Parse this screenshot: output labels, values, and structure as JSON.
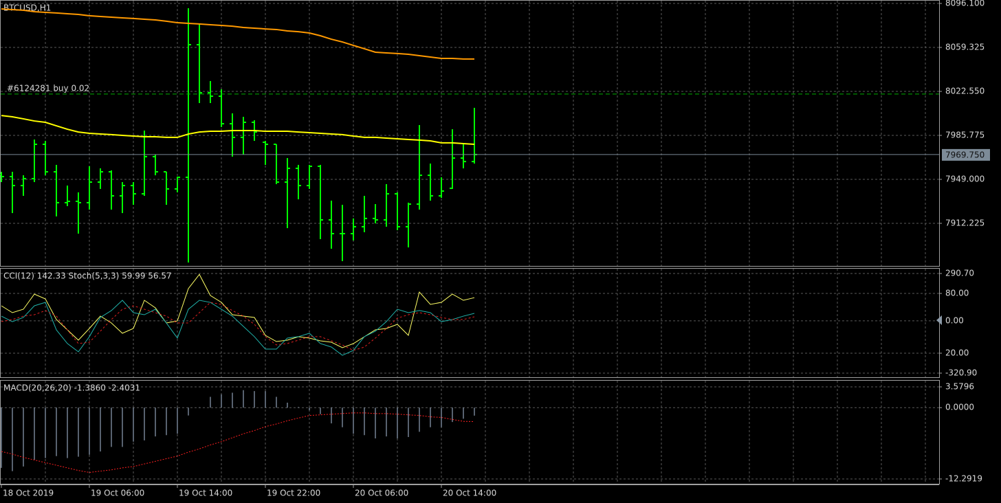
{
  "chart_data": [
    {
      "type": "ohlc",
      "title": "BTCUSD,H1",
      "categories": [
        "18 Oct 2019",
        null,
        null,
        null,
        null,
        null,
        null,
        null,
        "19 Oct 06:00",
        null,
        null,
        null,
        null,
        null,
        null,
        null,
        "19 Oct 14:00",
        null,
        null,
        null,
        null,
        null,
        null,
        null,
        "19 Oct 22:00",
        null,
        null,
        null,
        null,
        null,
        null,
        null,
        "20 Oct 06:00",
        null,
        null,
        null,
        null,
        null,
        null,
        null,
        "20 Oct 14:00",
        null,
        null,
        null
      ],
      "open": [
        7953.0,
        7951.3,
        7943.8,
        7949.6,
        7978.3,
        7955.3,
        7929.5,
        7930.6,
        7929.5,
        7946.7,
        7955.3,
        7935.2,
        7943.8,
        7936.9,
        7968.0,
        7955.3,
        7941.0,
        7950.7,
        8061.6,
        8021.4,
        8018.5,
        7995.5,
        7984.1,
        7996.7,
        7980.0,
        7978.3,
        7946.7,
        7958.2,
        7943.8,
        7959.9,
        7915.1,
        7903.6,
        7903.6,
        7909.4,
        7916.3,
        7915.1,
        7936.9,
        7909.4,
        7928.3,
        7952.4,
        7935.2,
        7941.5,
        7966.8,
        7963.9
      ],
      "high": [
        7955.3,
        7955.3,
        7952.4,
        7982.3,
        7981.2,
        7961.1,
        7943.8,
        7938.1,
        7959.9,
        7958.2,
        7956.5,
        7946.7,
        7946.7,
        7989.8,
        7969.7,
        7955.3,
        7951.3,
        8092.1,
        8078.9,
        8031.2,
        8024.3,
        8004.2,
        8001.3,
        7998.4,
        7981.2,
        7978.3,
        7966.8,
        7961.1,
        7961.1,
        7961.1,
        7931.2,
        7927.7,
        7916.3,
        7935.2,
        7928.3,
        7945.0,
        7938.1,
        7929.5,
        7994.4,
        7962.2,
        7950.7,
        7990.9,
        7978.3,
        8008.8
      ],
      "low": [
        7946.7,
        7920.8,
        7935.2,
        7946.7,
        7952.4,
        7918.0,
        7926.6,
        7903.6,
        7923.7,
        7941.0,
        7923.7,
        7920.8,
        7927.7,
        7935.2,
        7952.4,
        7927.7,
        7938.1,
        7879.5,
        8012.8,
        8012.8,
        7992.7,
        7968.0,
        7969.7,
        7981.2,
        7961.1,
        7945.0,
        7908.2,
        7932.3,
        7941.0,
        7899.0,
        7891.0,
        7880.6,
        7897.9,
        7904.8,
        7912.2,
        7909.4,
        7906.5,
        7892.1,
        7923.7,
        7931.2,
        7933.5,
        7941.0,
        7958.2,
        7962.2
      ],
      "close": [
        7951.3,
        7943.8,
        7949.6,
        7978.3,
        7955.3,
        7929.5,
        7930.6,
        7929.5,
        7946.7,
        7955.3,
        7935.2,
        7943.8,
        7936.9,
        7968.0,
        7955.3,
        7941.0,
        7950.7,
        8061.6,
        8021.4,
        8018.5,
        7995.5,
        7984.1,
        7996.7,
        7988.6,
        7978.3,
        7946.7,
        7958.2,
        7943.8,
        7959.9,
        7915.1,
        7903.6,
        7903.6,
        7909.4,
        7916.3,
        7915.1,
        7936.9,
        7909.4,
        7928.3,
        7952.4,
        7935.2,
        7939.2,
        7966.8,
        7963.9,
        7969.75
      ],
      "color": "#00ff00",
      "lines": [
        {
          "color": "#ff9900",
          "values": [
            8091.5,
            8090.9,
            8090.4,
            8089.2,
            8088.6,
            8088.1,
            8087.5,
            8086.9,
            8085.8,
            8085.2,
            8084.6,
            8084.0,
            8083.5,
            8082.9,
            8082.3,
            8081.2,
            8080.0,
            8079.4,
            8078.9,
            8078.3,
            8077.7,
            8077.1,
            8076.0,
            8075.4,
            8074.8,
            8074.3,
            8073.1,
            8072.5,
            8071.4,
            8069.1,
            8066.2,
            8063.9,
            8061.0,
            8058.2,
            8055.3,
            8054.7,
            8054.2,
            8053.6,
            8052.4,
            8051.3,
            8050.1,
            8050.1,
            8049.6,
            8049.6
          ]
        },
        {
          "color": "#ffff00",
          "values": [
            8002.4,
            8001.3,
            7999.6,
            7997.8,
            7996.7,
            7993.8,
            7990.9,
            7988.6,
            7987.5,
            7986.9,
            7986.4,
            7985.8,
            7985.2,
            7984.6,
            7984.6,
            7984.1,
            7984.1,
            7986.9,
            7988.6,
            7989.2,
            7989.2,
            7989.8,
            7989.8,
            7989.8,
            7989.2,
            7989.2,
            7989.2,
            7988.6,
            7988.1,
            7987.5,
            7986.9,
            7986.4,
            7985.2,
            7984.1,
            7984.1,
            7983.5,
            7982.9,
            7982.3,
            7981.8,
            7981.2,
            7979.5,
            7979.5,
            7978.9,
            7978.3
          ]
        }
      ],
      "order": {
        "label": "#6124281 buy 0.02",
        "price": 8020.3,
        "color": "#00b000"
      },
      "price_line": {
        "value": 7969.75,
        "label": "7969.750"
      },
      "ylim": [
        7876.6,
        8096.1
      ],
      "yticks": [
        {
          "value": 8096.1,
          "label": "8096.100"
        },
        {
          "value": 8059.325,
          "label": "8059.325"
        },
        {
          "value": 8022.55,
          "label": "8022.550"
        },
        {
          "value": 7985.775,
          "label": "7985.775"
        },
        {
          "value": 7949,
          "label": "7949.000"
        },
        {
          "value": 7912.225,
          "label": "7912.225"
        }
      ],
      "grid": true
    },
    {
      "type": "line",
      "title": "CCI(12) 142.33 Stoch(5,3,3) 59.99 56.57",
      "lines": [
        {
          "color": "#ffff66",
          "axis": "y",
          "style": "solid",
          "values": [
            92.5,
            50.3,
            71.4,
            164.2,
            134.6,
            8.1,
            -55.2,
            -118.4,
            -46.7,
            29.2,
            -13.0,
            -76.3,
            -46.7,
            126.2,
            79.8,
            -13.0,
            -0.3,
            197.9,
            285.0,
            155.7,
            113.5,
            37.6,
            29.2,
            20.7,
            -88.9,
            -126.9,
            -118.4,
            -97.4,
            -105.8,
            -122.7,
            -131.1,
            -164.8,
            -139.5,
            -97.4,
            -55.2,
            -46.7,
            -21.4,
            -88.9,
            176.8,
            100.9,
            113.5,
            164.2,
            126.2,
            142.33
          ]
        },
        {
          "color": "#20b2aa",
          "axis": "y2",
          "style": "solid",
          "values": [
            57.2,
            51.7,
            55.9,
            67.6,
            71.0,
            43.4,
            29.7,
            21.4,
            36.6,
            55.9,
            62.8,
            73.1,
            60.7,
            58.6,
            64.1,
            50.3,
            35.2,
            64.1,
            73.1,
            71.0,
            64.1,
            57.2,
            46.9,
            36.6,
            24.1,
            24.1,
            35.2,
            36.6,
            40.0,
            29.7,
            26.2,
            17.9,
            22.8,
            36.6,
            42.1,
            51.7,
            64.1,
            60.7,
            62.8,
            60.7,
            51.7,
            53.8,
            57.2,
            59.99
          ]
        },
        {
          "color": "#e02020",
          "axis": "y2",
          "style": "dashed",
          "values": [
            51.7,
            53.8,
            57.2,
            58.6,
            62.8,
            57.2,
            43.4,
            29.7,
            31.0,
            42.1,
            53.8,
            64.1,
            67.6,
            64.1,
            60.7,
            57.2,
            50.3,
            50.3,
            60.7,
            71.0,
            69.0,
            62.8,
            57.2,
            49.0,
            36.6,
            28.3,
            29.7,
            33.1,
            36.6,
            36.6,
            32.4,
            28.3,
            22.8,
            26.2,
            35.2,
            44.8,
            55.2,
            58.6,
            60.7,
            58.6,
            55.9,
            53.8,
            53.8,
            56.57
          ]
        }
      ],
      "ylim": [
        -320.9,
        290.7
      ],
      "yticks": [
        {
          "value": 290.7,
          "label": "290.70"
        },
        {
          "value": 0,
          "label": "0.00"
        },
        {
          "value": -320.9,
          "label": "-320.90"
        }
      ],
      "y2lim": [
        0,
        100
      ],
      "y2ticks": [
        {
          "value": 80,
          "label": "80.00"
        },
        {
          "value": 20,
          "label": "20.00"
        }
      ],
      "grid": true
    },
    {
      "type": "macd",
      "title": "MACD(20,26,20) -1.3860 -2.4031",
      "values": [
        -10.38,
        -10.94,
        -10.15,
        -9.02,
        -8.69,
        -8.35,
        -8.69,
        -8.46,
        -8.12,
        -7.56,
        -6.77,
        -6.77,
        -5.87,
        -5.64,
        -4.96,
        -4.74,
        -4.51,
        -1.35,
        0.05,
        1.86,
        2.29,
        2.58,
        3.01,
        2.86,
        2.86,
        1.86,
        0.86,
        0.1,
        -0.45,
        -1.13,
        -2.71,
        -3.38,
        -4.51,
        -4.74,
        -5.3,
        -4.96,
        -5.3,
        -5.07,
        -4.17,
        -3.38,
        -3.38,
        -2.48,
        -1.92,
        -1.386
      ],
      "color": "#b0c4de",
      "lines": [
        {
          "color": "#ff2020",
          "axis": "y",
          "style": "dotted",
          "values": [
            -7.56,
            -8.01,
            -8.57,
            -9.02,
            -9.48,
            -9.93,
            -10.38,
            -10.83,
            -11.17,
            -10.94,
            -10.72,
            -10.38,
            -10.15,
            -9.7,
            -9.25,
            -8.8,
            -8.35,
            -7.67,
            -7.11,
            -6.43,
            -5.87,
            -5.19,
            -4.51,
            -3.95,
            -3.27,
            -2.82,
            -2.26,
            -1.8,
            -1.35,
            -1.24,
            -1.13,
            -1.02,
            -0.9,
            -0.9,
            -1.02,
            -1.02,
            -1.13,
            -1.24,
            -1.35,
            -1.58,
            -1.69,
            -2.03,
            -2.37,
            -2.4031
          ]
        }
      ],
      "ylim": [
        -12.2919,
        3.5796
      ],
      "yticks": [
        {
          "value": 3.5796,
          "label": "3.5796"
        },
        {
          "value": 0,
          "label": "0.0000"
        },
        {
          "value": -12.2919,
          "label": "-12.2919"
        }
      ],
      "grid": true
    }
  ]
}
